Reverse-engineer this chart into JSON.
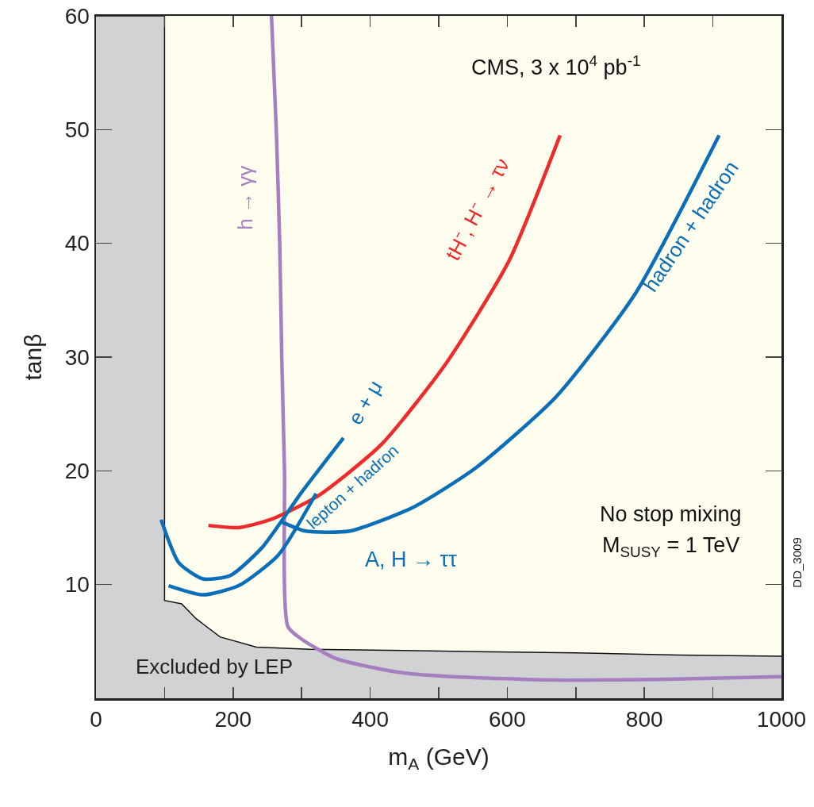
{
  "chart_data": {
    "type": "line",
    "xlabel": "m$_{A}$ (GeV)",
    "ylabel": "tanβ",
    "xlim": [
      0,
      1000
    ],
    "ylim": [
      0,
      60
    ],
    "xticks": [
      0,
      {
        "value": 100,
        "label": null
      },
      200,
      {
        "value": 300,
        "label": null
      },
      400,
      {
        "value": 500,
        "label": null
      },
      600,
      {
        "value": 700,
        "label": null
      },
      800,
      {
        "value": 900,
        "label": null
      },
      1000
    ],
    "yticks": [
      10,
      20,
      30,
      40,
      50,
      60
    ],
    "grid": false,
    "legend": false,
    "marker": "none",
    "line_style": "solid",
    "series": [
      {
        "name": "Excluded by LEP",
        "type": "area",
        "color": "#d1d2d4",
        "x": [
          0,
          100,
          100,
          125,
          146,
          181,
          234,
          312,
          450,
          557,
          700,
          850,
          1000
        ],
        "values": [
          60,
          60,
          8.6,
          8.3,
          7.0,
          5.4,
          4.5,
          4.3,
          4.2,
          4.1,
          4.0,
          3.8,
          3.7
        ]
      },
      {
        "name": "h → γγ",
        "color": "#a57fbf",
        "x": [
          256,
          263,
          268,
          271,
          275,
          280,
          300,
          350,
          440,
          520,
          673,
          847,
          1000
        ],
        "values": [
          60,
          50,
          40,
          30,
          20,
          6.3,
          5.2,
          3.5,
          2.3,
          1.9,
          1.6,
          1.7,
          1.9
        ]
      },
      {
        "name": "tH⁻, H⁻ → τν",
        "color": "#ee2a2a",
        "x": [
          164,
          208,
          254,
          324,
          416,
          509,
          602,
          677
        ],
        "values": [
          15.2,
          15.0,
          15.7,
          17.8,
          22.3,
          29.3,
          38.4,
          49.5
        ]
      },
      {
        "name": "e + μ",
        "color": "#0a6fb8",
        "x": [
          95,
          121,
          156,
          196,
          243,
          301,
          361
        ],
        "values": [
          15.7,
          11.9,
          10.5,
          10.8,
          13.3,
          18.2,
          22.9
        ]
      },
      {
        "name": "lepton + hadron",
        "color": "#0a6fb8",
        "x": [
          106,
          156,
          208,
          266,
          321
        ],
        "values": [
          9.9,
          9.1,
          9.9,
          12.6,
          18.0
        ]
      },
      {
        "name": "hadron + hadron",
        "color": "#0a6fb8",
        "x": [
          271,
          306,
          370,
          463,
          555,
          671,
          787,
          909
        ],
        "values": [
          15.5,
          14.7,
          14.7,
          16.8,
          20.3,
          26.5,
          35.6,
          49.5
        ]
      }
    ],
    "annotations": [
      "CMS, 3 x 10$^{4}$ pb$^{-1}$",
      "No stop mixing",
      "M$_{SUSY}$ = 1 TeV",
      "A, H → ττ",
      "DD_3009"
    ]
  }
}
